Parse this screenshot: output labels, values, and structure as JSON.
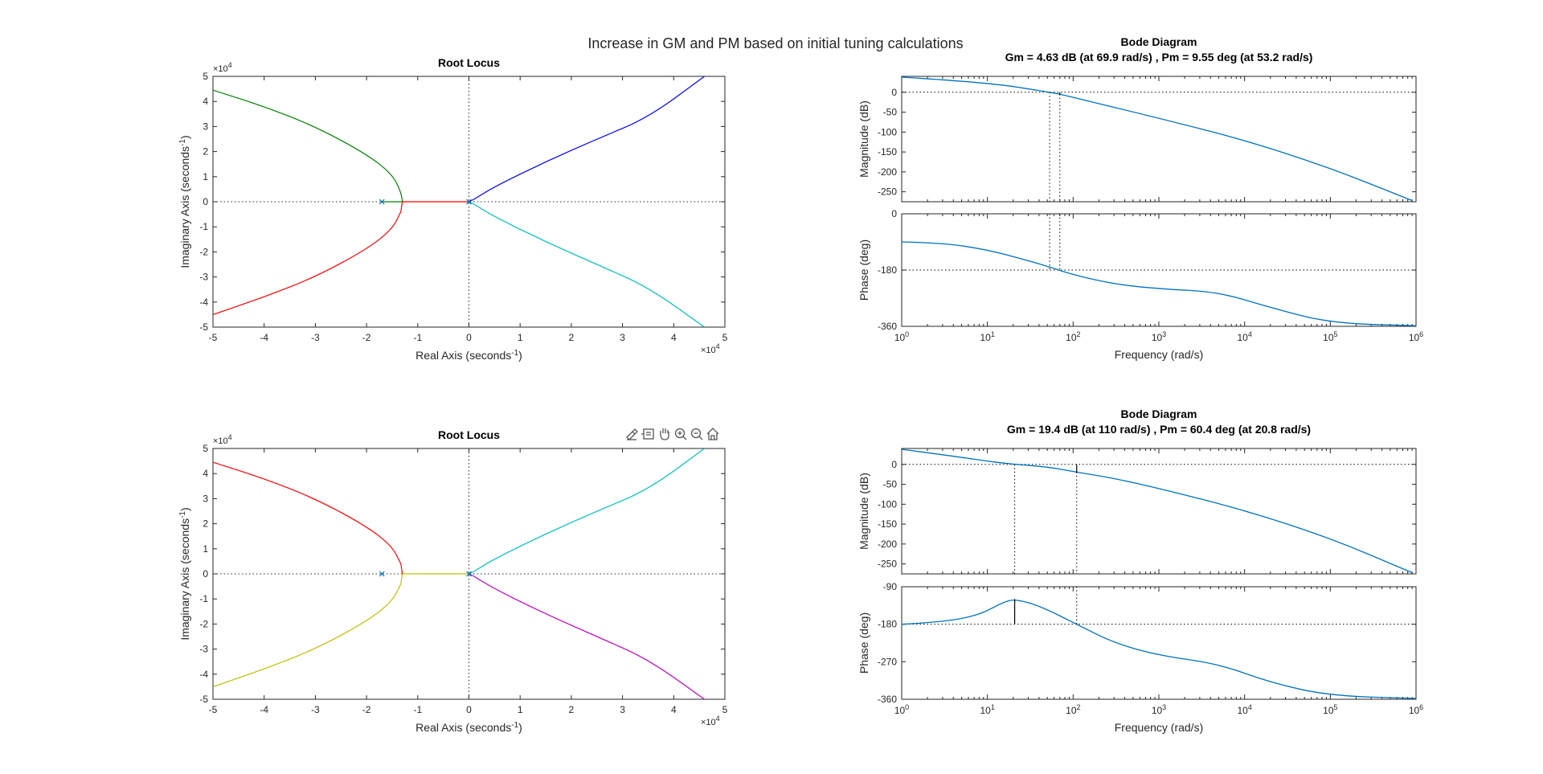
{
  "figure": {
    "title": "Increase in GM and PM based on initial tuning calculations"
  },
  "toolbar": {
    "icons": [
      "brush-icon",
      "datatip-icon",
      "pan-icon",
      "zoom-in-icon",
      "zoom-out-icon",
      "home-icon"
    ]
  },
  "colors": {
    "bode_line": "#0072BD",
    "blue": "#0000FF",
    "green": "#008000",
    "red": "#FF0000",
    "cyan": "#00BFBF",
    "yellow": "#BFBF00",
    "magenta": "#BF00BF"
  },
  "chart_data": [
    {
      "type": "line",
      "subtype": "root-locus",
      "title": "Root Locus",
      "xlabel": "Real Axis (seconds",
      "ylabel": "Imaginary Axis (seconds",
      "label_exponent": "-1",
      "xlim": [
        -50000,
        50000
      ],
      "ylim": [
        -50000,
        50000
      ],
      "xticks": [
        -5,
        -4,
        -3,
        -2,
        -1,
        0,
        1,
        2,
        3,
        4,
        5
      ],
      "yticks": [
        -5,
        -4,
        -3,
        -2,
        -1,
        0,
        1,
        2,
        3,
        4,
        5
      ],
      "tick_multiplier": "10",
      "tick_multiplier_exp": "4",
      "poles": [
        [
          -17000,
          0
        ],
        [
          0,
          0
        ]
      ],
      "series": [
        {
          "color": "#008000",
          "points": [
            [
              -17000,
              0
            ],
            [
              -13000,
              0
            ],
            [
              -13300,
              4000
            ],
            [
              -15000,
              11000
            ],
            [
              -20000,
              19000
            ],
            [
              -30000,
              30000
            ],
            [
              -40000,
              38000
            ],
            [
              -50000,
              44500
            ]
          ]
        },
        {
          "color": "#FF0000",
          "points": [
            [
              -13000,
              0
            ],
            [
              0,
              0
            ]
          ]
        },
        {
          "color": "#FF0000",
          "points": [
            [
              -13000,
              0
            ],
            [
              -13300,
              -4000
            ],
            [
              -15000,
              -11000
            ],
            [
              -20000,
              -19000
            ],
            [
              -30000,
              -30000
            ],
            [
              -40000,
              -38000
            ],
            [
              -50000,
              -45000
            ]
          ]
        },
        {
          "color": "#0000FF",
          "points": [
            [
              0,
              0
            ],
            [
              1000,
              1000
            ],
            [
              5000,
              6000
            ],
            [
              15000,
              16000
            ],
            [
              25000,
              25000
            ],
            [
              35000,
              33500
            ],
            [
              46000,
              50000
            ]
          ]
        },
        {
          "color": "#00BFBF",
          "points": [
            [
              0,
              0
            ],
            [
              1000,
              -1000
            ],
            [
              5000,
              -6000
            ],
            [
              15000,
              -16000
            ],
            [
              25000,
              -25000
            ],
            [
              35000,
              -34000
            ],
            [
              46000,
              -50000
            ]
          ]
        }
      ]
    },
    {
      "type": "line",
      "subtype": "bode",
      "title": "Bode Diagram",
      "subtitle": "Gm = 4.63 dB (at 69.9 rad/s) ,  Pm = 9.55 deg (at 53.2 rad/s)",
      "xlabel": "Frequency  (rad/s)",
      "mag_ylabel": "Magnitude (dB)",
      "phase_ylabel": "Phase (deg)",
      "x_log": true,
      "xlim": [
        1,
        1000000
      ],
      "x_decades": [
        "0",
        "1",
        "2",
        "3",
        "4",
        "5",
        "6"
      ],
      "x_base": "10",
      "mag_ylim": [
        -275,
        40
      ],
      "mag_yticks": [
        0,
        -50,
        -100,
        -150,
        -200,
        -250
      ],
      "mag_ytick_labels": [
        "0",
        "-50",
        "-100",
        "-150",
        "-200",
        "-250"
      ],
      "phase_ylim": [
        -360,
        0
      ],
      "phase_yticks": [
        0,
        -180,
        -360
      ],
      "phase_ytick_labels": [
        "0",
        "-180",
        "-360"
      ],
      "margin_lines": {
        "mag_ref": 0,
        "phase_ref": -180,
        "gm_freq": 69.9,
        "pm_freq": 53.2,
        "gm_db": 4.63
      },
      "magnitude": [
        [
          1,
          38
        ],
        [
          10,
          25
        ],
        [
          53.2,
          0
        ],
        [
          69.9,
          -4.63
        ],
        [
          100,
          -13
        ],
        [
          1000,
          -65
        ],
        [
          10000,
          -120
        ],
        [
          100000,
          -190
        ],
        [
          900000,
          -272
        ]
      ],
      "phase": [
        [
          1,
          -90
        ],
        [
          3,
          -93
        ],
        [
          10,
          -115
        ],
        [
          30,
          -150
        ],
        [
          53.2,
          -170
        ],
        [
          100,
          -195
        ],
        [
          300,
          -225
        ],
        [
          1000,
          -240
        ],
        [
          5000,
          -250
        ],
        [
          20000,
          -300
        ],
        [
          100000,
          -350
        ],
        [
          1000000,
          -358
        ]
      ]
    },
    {
      "type": "line",
      "subtype": "root-locus",
      "title": "Root Locus",
      "xlabel": "Real Axis (seconds",
      "ylabel": "Imaginary Axis (seconds",
      "label_exponent": "-1",
      "xlim": [
        -50000,
        50000
      ],
      "ylim": [
        -50000,
        50000
      ],
      "xticks": [
        -5,
        -4,
        -3,
        -2,
        -1,
        0,
        1,
        2,
        3,
        4,
        5
      ],
      "yticks": [
        -5,
        -4,
        -3,
        -2,
        -1,
        0,
        1,
        2,
        3,
        4,
        5
      ],
      "tick_multiplier": "10",
      "tick_multiplier_exp": "4",
      "poles": [
        [
          -17000,
          0
        ],
        [
          0,
          0
        ]
      ],
      "series": [
        {
          "color": "#FF0000",
          "points": [
            [
              -13000,
              0
            ],
            [
              -13300,
              4000
            ],
            [
              -15000,
              11000
            ],
            [
              -20000,
              19000
            ],
            [
              -30000,
              30000
            ],
            [
              -40000,
              38000
            ],
            [
              -50000,
              44500
            ]
          ]
        },
        {
          "color": "#BFBF00",
          "points": [
            [
              -13000,
              0
            ],
            [
              0,
              0
            ]
          ]
        },
        {
          "color": "#BFBF00",
          "points": [
            [
              -13000,
              0
            ],
            [
              -13300,
              -4000
            ],
            [
              -15000,
              -11000
            ],
            [
              -20000,
              -19000
            ],
            [
              -30000,
              -30000
            ],
            [
              -40000,
              -38000
            ],
            [
              -50000,
              -45000
            ]
          ]
        },
        {
          "color": "#00BFBF",
          "points": [
            [
              0,
              0
            ],
            [
              1000,
              1000
            ],
            [
              5000,
              6000
            ],
            [
              15000,
              16000
            ],
            [
              25000,
              25000
            ],
            [
              35000,
              33500
            ],
            [
              46000,
              50000
            ]
          ]
        },
        {
          "color": "#BF00BF",
          "points": [
            [
              0,
              0
            ],
            [
              1000,
              -1000
            ],
            [
              5000,
              -6000
            ],
            [
              15000,
              -16000
            ],
            [
              25000,
              -25000
            ],
            [
              35000,
              -34000
            ],
            [
              46000,
              -50000
            ]
          ]
        }
      ]
    },
    {
      "type": "line",
      "subtype": "bode",
      "title": "Bode Diagram",
      "subtitle": "Gm = 19.4 dB (at 110 rad/s) ,  Pm = 60.4 deg (at 20.8 rad/s)",
      "xlabel": "Frequency  (rad/s)",
      "mag_ylabel": "Magnitude (dB)",
      "phase_ylabel": "Phase (deg)",
      "x_log": true,
      "xlim": [
        1,
        1000000
      ],
      "x_decades": [
        "0",
        "1",
        "2",
        "3",
        "4",
        "5",
        "6"
      ],
      "x_base": "10",
      "mag_ylim": [
        -275,
        40
      ],
      "mag_yticks": [
        0,
        -50,
        -100,
        -150,
        -200,
        -250
      ],
      "mag_ytick_labels": [
        "0",
        "-50",
        "-100",
        "-150",
        "-200",
        "-250"
      ],
      "phase_ylim": [
        -360,
        -90
      ],
      "phase_yticks": [
        -90,
        -180,
        -270,
        -360
      ],
      "phase_ytick_labels": [
        "-90",
        "-180",
        "-270",
        "-360"
      ],
      "margin_lines": {
        "mag_ref": 0,
        "phase_ref": -180,
        "gm_freq": 110,
        "pm_freq": 20.8,
        "gm_db": 19.4,
        "pm_deg": 60.4
      },
      "magnitude": [
        [
          1,
          38
        ],
        [
          5,
          18
        ],
        [
          10,
          8
        ],
        [
          20.8,
          0
        ],
        [
          50,
          -6
        ],
        [
          110,
          -19.4
        ],
        [
          300,
          -35
        ],
        [
          1000,
          -60
        ],
        [
          10000,
          -115
        ],
        [
          100000,
          -185
        ],
        [
          900000,
          -272
        ]
      ],
      "phase": [
        [
          1,
          -180
        ],
        [
          3,
          -175
        ],
        [
          8,
          -158
        ],
        [
          15,
          -128
        ],
        [
          20.8,
          -119.6
        ],
        [
          40,
          -135
        ],
        [
          110,
          -180
        ],
        [
          300,
          -225
        ],
        [
          1000,
          -255
        ],
        [
          5000,
          -275
        ],
        [
          20000,
          -320
        ],
        [
          100000,
          -352
        ],
        [
          1000000,
          -358
        ]
      ]
    }
  ]
}
